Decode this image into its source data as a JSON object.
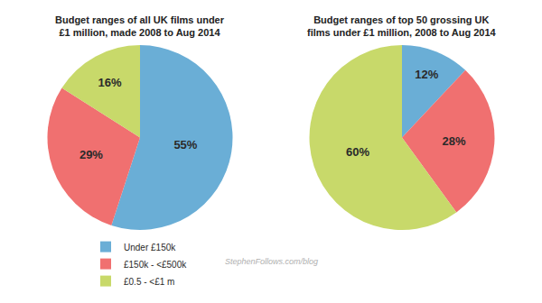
{
  "chart_data": [
    {
      "type": "pie",
      "title": "Budget ranges of all UK films under\n£1 million, made 2008 to Aug 2014",
      "categories": [
        "Under £150k",
        "£150k - <£500k",
        "£0.5 - <£1 m"
      ],
      "values": [
        55,
        29,
        16
      ],
      "value_labels": [
        "55%",
        "29%",
        "16%"
      ],
      "colors": [
        "#6aaed6",
        "#f07070",
        "#c8d96a"
      ],
      "data_labels": true,
      "legend": "bottom",
      "annotations": [
        "StephenFollows.com/blog"
      ]
    },
    {
      "type": "pie",
      "title": "Budget ranges of top 50 grossing UK\nfilms under £1 million, 2008 to Aug 2014",
      "categories": [
        "Under £150k",
        "£150k - <£500k",
        "£0.5 - <£1 m"
      ],
      "values": [
        12,
        28,
        60
      ],
      "value_labels": [
        "12%",
        "28%",
        "60%"
      ],
      "colors": [
        "#6aaed6",
        "#f07070",
        "#c8d96a"
      ],
      "data_labels": true,
      "legend": "bottom"
    }
  ]
}
